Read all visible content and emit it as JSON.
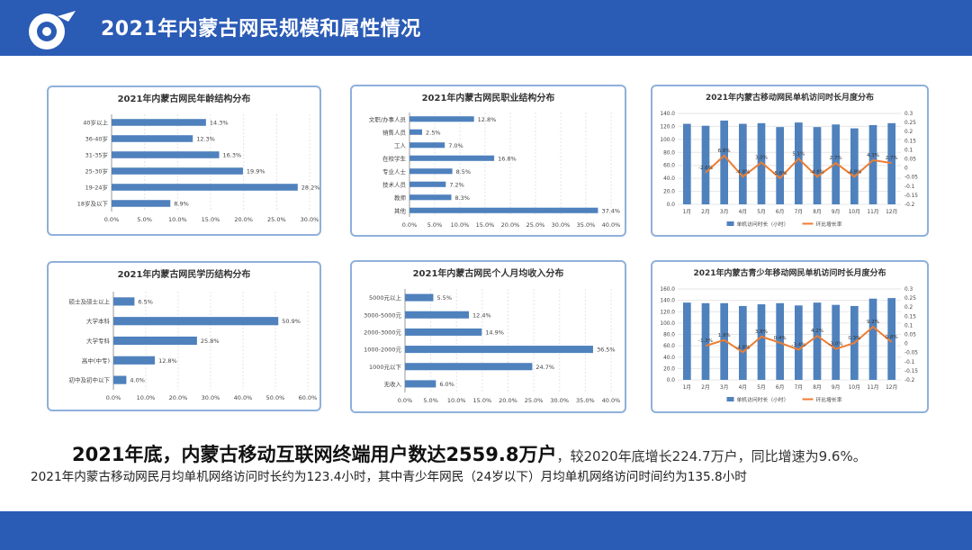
{
  "header": {
    "title": "2021年内蒙古网民规模和属性情况"
  },
  "colors": {
    "bar": "#4f81bd",
    "line": "#ed7d31",
    "header": "#2a5bb5",
    "border": "#8fb0da"
  },
  "summary": {
    "headline_bold": "2021年底，内蒙古移动互联网终端用户数达2559.8万户",
    "headline_rest": "，较2020年底增长224.7万户，同比增速为9.6%。",
    "subline": "2021年内蒙古移动网民月均单机网络访问时长约为123.4小时，其中青少年网民（24岁以下）月均单机网络访问时间约为135.8小时"
  },
  "chart_data": [
    {
      "id": "age",
      "type": "bar",
      "orientation": "horizontal",
      "title": "2021年内蒙古网民年龄结构分布",
      "categories": [
        "40岁以上",
        "36-40岁",
        "31-35岁",
        "25-30岁",
        "19-24岁",
        "18岁及以下"
      ],
      "values": [
        14.3,
        12.3,
        16.3,
        19.9,
        28.2,
        8.9
      ],
      "value_labels": [
        "14.3%",
        "12.3%",
        "16.3%",
        "19.9%",
        "28.2%",
        "8.9%"
      ],
      "xlim": [
        0,
        30
      ],
      "xticks": [
        "0.0%",
        "5.0%",
        "10.0%",
        "15.0%",
        "20.0%",
        "25.0%",
        "30.0%"
      ]
    },
    {
      "id": "job",
      "type": "bar",
      "orientation": "horizontal",
      "title": "2021年内蒙古网民职业结构分布",
      "categories": [
        "文职/办事人员",
        "销售人员",
        "工人",
        "在校学生",
        "专业人士",
        "技术人员",
        "教师",
        "其他"
      ],
      "values": [
        12.8,
        2.5,
        7.0,
        16.8,
        8.5,
        7.2,
        8.3,
        37.4
      ],
      "value_labels": [
        "12.8%",
        "2.5%",
        "7.0%",
        "16.8%",
        "8.5%",
        "7.2%",
        "8.3%",
        "37.4%"
      ],
      "xlim": [
        0,
        40
      ],
      "xticks": [
        "0.0%",
        "5.0%",
        "10.0%",
        "15.0%",
        "20.0%",
        "25.0%",
        "30.0%",
        "35.0%",
        "40.0%"
      ]
    },
    {
      "id": "mobile",
      "type": "bar+line",
      "title": "2021年内蒙古移动网民单机访问时长月度分布",
      "categories": [
        "1月",
        "2月",
        "3月",
        "4月",
        "5月",
        "6月",
        "7月",
        "8月",
        "9月",
        "10月",
        "11月",
        "12月"
      ],
      "series": [
        {
          "name": "单机访问时长（小时）",
          "type": "bar",
          "axis": "left",
          "values": [
            124,
            121,
            129,
            124,
            125,
            119,
            126,
            119,
            123,
            117,
            122,
            125
          ]
        },
        {
          "name": "环比增长率",
          "type": "line",
          "axis": "right",
          "values": [
            null,
            -2.6,
            6.8,
            -4.8,
            3.0,
            -5.6,
            5.1,
            -4.8,
            2.7,
            -4.8,
            4.3,
            2.7
          ],
          "value_labels": [
            "",
            "-2.6%",
            "6.8%",
            "-4.8%",
            "3.0%",
            "-5.6%",
            "5.1%",
            "-4.8%",
            "2.7%",
            "-4.8%",
            "4.3%",
            "2.7%"
          ]
        }
      ],
      "ylim_left": [
        0,
        140
      ],
      "yticks_left": [
        "0.0",
        "20.0",
        "40.0",
        "60.0",
        "80.0",
        "100.0",
        "120.0",
        "140.0"
      ],
      "ylim_right": [
        -0.2,
        0.3
      ],
      "yticks_right": [
        "-0.2",
        "-0.15",
        "-0.1",
        "-0.05",
        "0",
        "0.05",
        "0.1",
        "0.15",
        "0.2",
        "0.25",
        "0.3"
      ]
    },
    {
      "id": "edu",
      "type": "bar",
      "orientation": "horizontal",
      "title": "2021年内蒙古网民学历结构分布",
      "categories": [
        "硕士及硕士以上",
        "大学本科",
        "大学专科",
        "高中(中专)",
        "初中及初中以下"
      ],
      "values": [
        6.5,
        50.9,
        25.8,
        12.8,
        4.0
      ],
      "value_labels": [
        "6.5%",
        "50.9%",
        "25.8%",
        "12.8%",
        "4.0%"
      ],
      "xlim": [
        0,
        60
      ],
      "xticks": [
        "0.0%",
        "10.0%",
        "20.0%",
        "30.0%",
        "40.0%",
        "50.0%",
        "60.0%"
      ]
    },
    {
      "id": "income",
      "type": "bar",
      "orientation": "horizontal",
      "title": "2021年内蒙古网民个人月均收入分布",
      "categories": [
        "5000元以上",
        "3000-5000元",
        "2000-3000元",
        "1000-2000元",
        "1000元以下",
        "无收入"
      ],
      "values": [
        5.5,
        12.4,
        14.9,
        36.5,
        24.7,
        6.0
      ],
      "value_labels": [
        "5.5%",
        "12.4%",
        "14.9%",
        "36.5%",
        "24.7%",
        "6.0%"
      ],
      "xlim": [
        0,
        40
      ],
      "xticks": [
        "0.0%",
        "5.0%",
        "10.0%",
        "15.0%",
        "20.0%",
        "25.0%",
        "30.0%",
        "35.0%",
        "40.0%"
      ]
    },
    {
      "id": "youth",
      "type": "bar+line",
      "title": "2021年内蒙古青少年移动网民单机访问时长月度分布",
      "categories": [
        "1月",
        "2月",
        "3月",
        "4月",
        "5月",
        "6月",
        "7月",
        "8月",
        "9月",
        "10月",
        "11月",
        "12月"
      ],
      "series": [
        {
          "name": "单机访问时长（小时）",
          "type": "bar",
          "axis": "left",
          "values": [
            136,
            135,
            135,
            130,
            133,
            135,
            131,
            136,
            132,
            130,
            143,
            144
          ]
        },
        {
          "name": "环比增长率",
          "type": "line",
          "axis": "right",
          "values": [
            null,
            -1.3,
            1.9,
            -4.8,
            3.8,
            0.4,
            -3.4,
            4.2,
            -3.0,
            0.3,
            9.2,
            0.8
          ],
          "value_labels": [
            "",
            "-1.3%",
            "1.9%",
            "-4.8%",
            "3.8%",
            "0.4%",
            "-3.4%",
            "4.2%",
            "-3.0%",
            "0.3%",
            "9.2%",
            "0.8%"
          ]
        }
      ],
      "ylim_left": [
        0,
        160
      ],
      "yticks_left": [
        "0.0",
        "20.0",
        "40.0",
        "60.0",
        "80.0",
        "100.0",
        "120.0",
        "140.0",
        "160.0"
      ],
      "ylim_right": [
        -0.2,
        0.3
      ],
      "yticks_right": [
        "-0.2",
        "-0.15",
        "-0.1",
        "-0.05",
        "0",
        "0.05",
        "0.1",
        "0.15",
        "0.2",
        "0.25",
        "0.3"
      ]
    }
  ]
}
